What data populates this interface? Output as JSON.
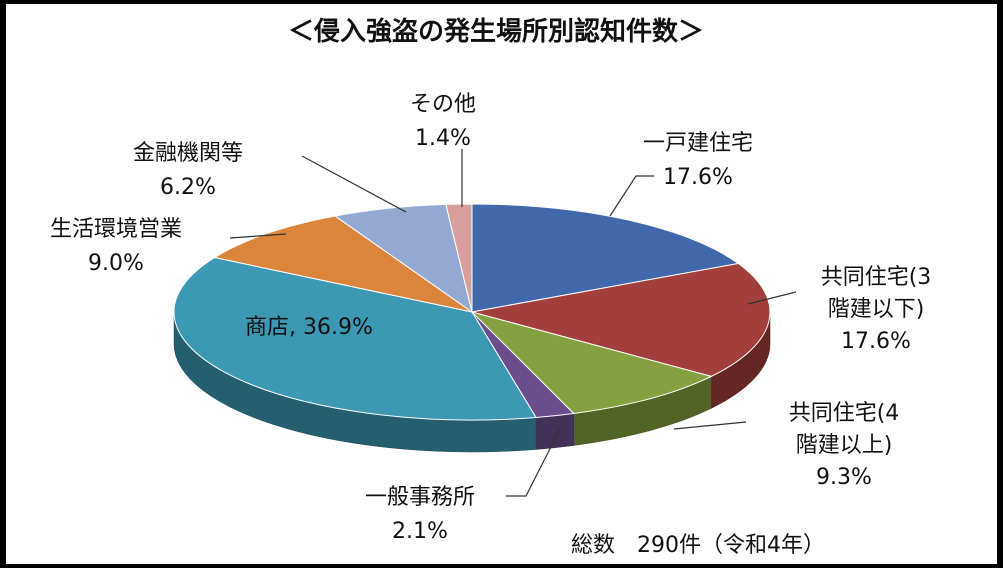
{
  "chart_data": {
    "type": "pie",
    "title": "＜侵入強盗の発生場所別認知件数＞",
    "note": "総数　290件（令和4年）",
    "slices": [
      {
        "key": "ikkodate",
        "label_lines": [
          "一戸建住宅"
        ],
        "pct_text": "17.6%",
        "value": 17.6,
        "color": "#4168aa"
      },
      {
        "key": "kyodo3",
        "label_lines": [
          "共同住宅(3",
          "階建以下)"
        ],
        "pct_text": "17.6%",
        "value": 17.6,
        "color": "#a23f3c"
      },
      {
        "key": "kyodo4",
        "label_lines": [
          "共同住宅(4",
          "階建以上)"
        ],
        "pct_text": "9.3%",
        "value": 9.3,
        "color": "#85a03e"
      },
      {
        "key": "ippanjimusho",
        "label_lines": [
          "一般事務所"
        ],
        "pct_text": "2.1%",
        "value": 2.1,
        "color": "#6a4d8d"
      },
      {
        "key": "shoten",
        "label_lines": [
          "商店,"
        ],
        "pct_text": "36.9%",
        "value": 36.9,
        "color": "#3c98b3"
      },
      {
        "key": "seikatsu",
        "label_lines": [
          "生活環境営業"
        ],
        "pct_text": "9.0%",
        "value": 9.0,
        "color": "#db853c"
      },
      {
        "key": "kinyu",
        "label_lines": [
          "金融機関等"
        ],
        "pct_text": "6.2%",
        "value": 6.2,
        "color": "#94a9d2"
      },
      {
        "key": "sonota",
        "label_lines": [
          "その他"
        ],
        "pct_text": "1.4%",
        "value": 1.4,
        "color": "#d7a09c"
      }
    ]
  }
}
